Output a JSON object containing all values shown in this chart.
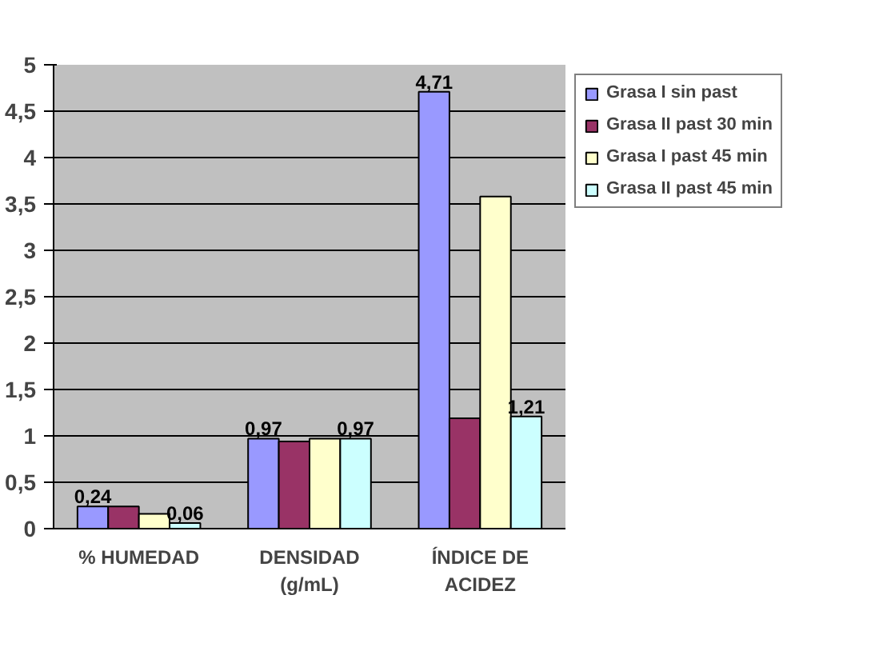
{
  "chart_data": {
    "type": "bar",
    "categories": [
      "% HUMEDAD",
      "DENSIDAD\n(g/mL)",
      "ÍNDICE DE\nACIDEZ"
    ],
    "series": [
      {
        "name": "Grasa I sin past",
        "color": "#9999ff",
        "values": [
          0.24,
          0.97,
          4.71
        ],
        "value_labels": [
          "0,24",
          "0,97",
          "4,71"
        ]
      },
      {
        "name": "Grasa II past 30 min",
        "color": "#993366",
        "values": [
          0.24,
          0.94,
          1.19
        ]
      },
      {
        "name": "Grasa I past 45 min",
        "color": "#ffffcc",
        "values": [
          0.16,
          0.97,
          3.58
        ]
      },
      {
        "name": "Grasa II past 45 min",
        "color": "#ccffff",
        "values": [
          0.06,
          0.97,
          1.21
        ],
        "value_labels": [
          "0,06",
          "0,97",
          "1,21"
        ]
      }
    ],
    "ylim": [
      0,
      5
    ],
    "yticks": [
      0,
      {
        "value": 0.5,
        "label": "0,5"
      },
      1,
      {
        "value": 1.5,
        "label": "1,5"
      },
      2,
      {
        "value": 2.5,
        "label": "2,5"
      },
      3,
      {
        "value": 3.5,
        "label": "3,5"
      },
      4,
      {
        "value": 4.5,
        "label": "4,5"
      },
      5
    ],
    "grid": "y",
    "legend": "right"
  }
}
